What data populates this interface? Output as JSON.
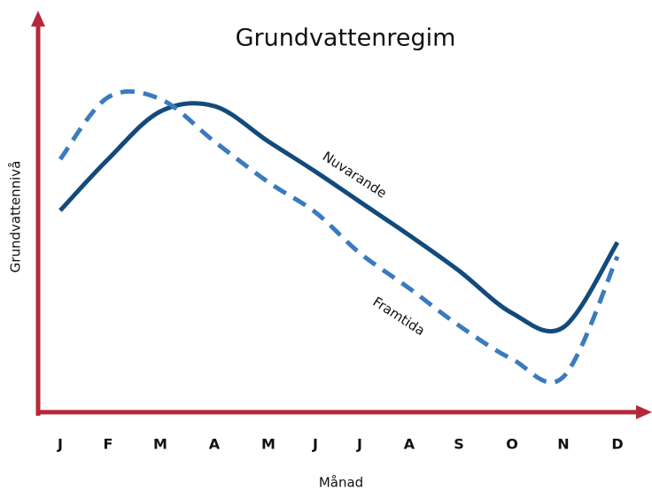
{
  "chart_data": {
    "type": "line",
    "title": "Grundvattenregim",
    "x_label": "Månad",
    "y_label": "Grundvattennivå",
    "categories": [
      "J",
      "F",
      "M",
      "A",
      "M",
      "J",
      "J",
      "A",
      "S",
      "O",
      "N",
      "D"
    ],
    "ylim": [
      0,
      100
    ],
    "series": [
      {
        "name": "Nuvarande",
        "color": "#134a7c",
        "dashed": false,
        "values": [
          57,
          71.5,
          85,
          86.5,
          76.5,
          68,
          59.5,
          50,
          40,
          28,
          24,
          48
        ]
      },
      {
        "name": "Framtida",
        "color": "#3a7bbf",
        "dashed": true,
        "values": [
          71.5,
          89,
          88.5,
          76.5,
          65,
          56.5,
          45,
          35,
          24.5,
          15,
          10,
          44
        ]
      }
    ],
    "axis_color": "#b5283a"
  }
}
